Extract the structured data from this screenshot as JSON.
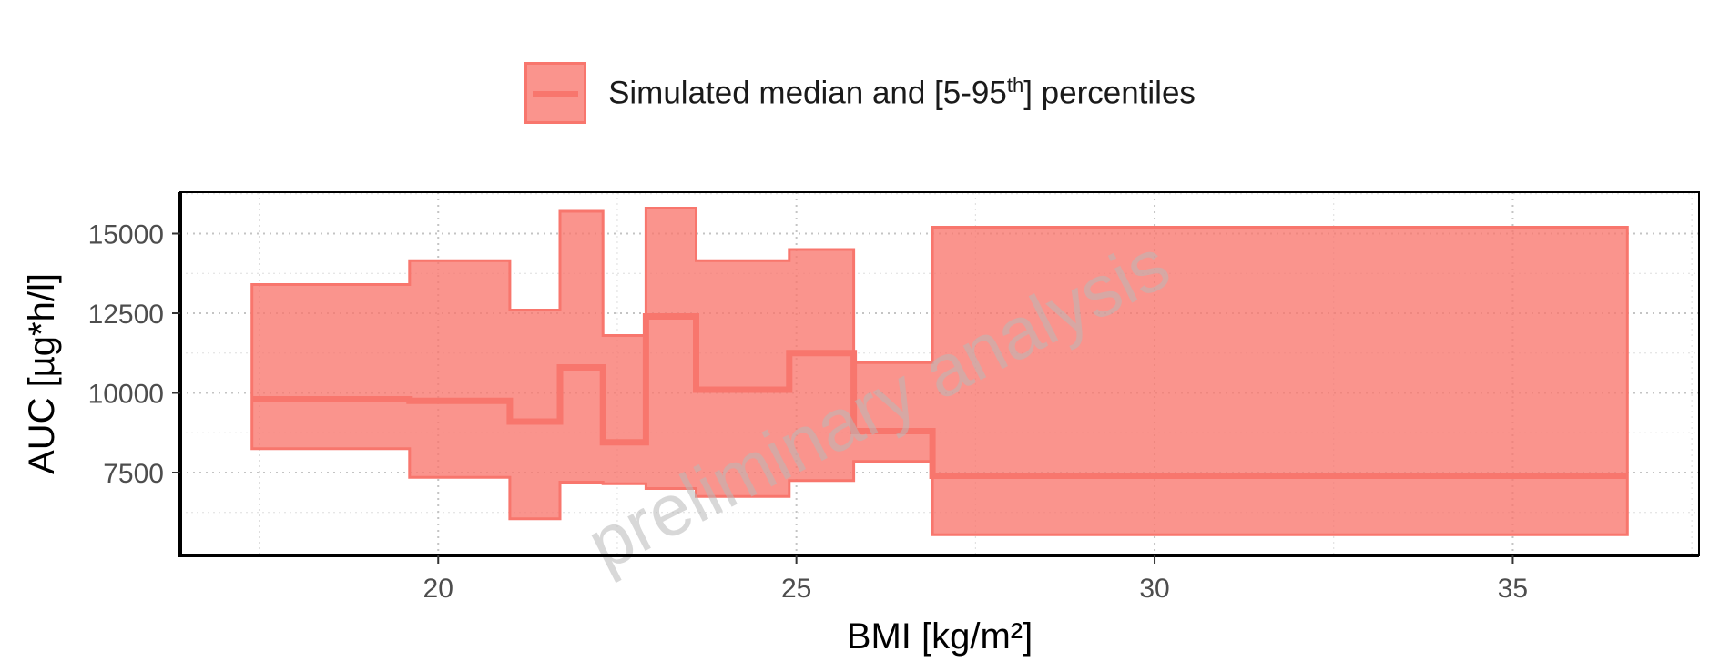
{
  "legend": {
    "label_prefix": "Simulated median and [5-95",
    "label_sup": "th",
    "label_suffix": "] percentiles"
  },
  "watermark": "preliminary analysis",
  "chart_data": {
    "type": "area",
    "xlabel": "BMI [kg/m²]",
    "ylabel": "AUC [µg*h/l]",
    "xlim": [
      16.4,
      37.6
    ],
    "ylim": [
      4900,
      16300
    ],
    "x_ticks": [
      20,
      25,
      30,
      35
    ],
    "x_tick_labels": [
      "20",
      "25",
      "30",
      "35"
    ],
    "y_ticks": [
      7500,
      10000,
      12500,
      15000
    ],
    "y_tick_labels": [
      "7500",
      "10000",
      "12500",
      "15000"
    ],
    "grid": true,
    "legend_position": "top",
    "color": "#F8766D",
    "series": [
      {
        "name": "Simulated median and [5-95th] percentiles",
        "bins": [
          {
            "x0": 17.4,
            "x1": 19.6,
            "p5": 8250,
            "median": 9800,
            "p95": 13400
          },
          {
            "x0": 19.6,
            "x1": 21.0,
            "p5": 7350,
            "median": 9750,
            "p95": 14150
          },
          {
            "x0": 21.0,
            "x1": 21.7,
            "p5": 6050,
            "median": 9100,
            "p95": 12600
          },
          {
            "x0": 21.7,
            "x1": 22.3,
            "p5": 7200,
            "median": 10800,
            "p95": 15700
          },
          {
            "x0": 22.3,
            "x1": 22.9,
            "p5": 7150,
            "median": 8450,
            "p95": 11800
          },
          {
            "x0": 22.9,
            "x1": 23.6,
            "p5": 7000,
            "median": 12400,
            "p95": 15800
          },
          {
            "x0": 23.6,
            "x1": 24.9,
            "p5": 6750,
            "median": 10100,
            "p95": 14150
          },
          {
            "x0": 24.9,
            "x1": 25.8,
            "p5": 7250,
            "median": 11250,
            "p95": 14500
          },
          {
            "x0": 25.8,
            "x1": 26.9,
            "p5": 7850,
            "median": 8800,
            "p95": 10950
          },
          {
            "x0": 26.9,
            "x1": 36.6,
            "p5": 5550,
            "median": 7400,
            "p95": 15200
          }
        ]
      }
    ]
  }
}
